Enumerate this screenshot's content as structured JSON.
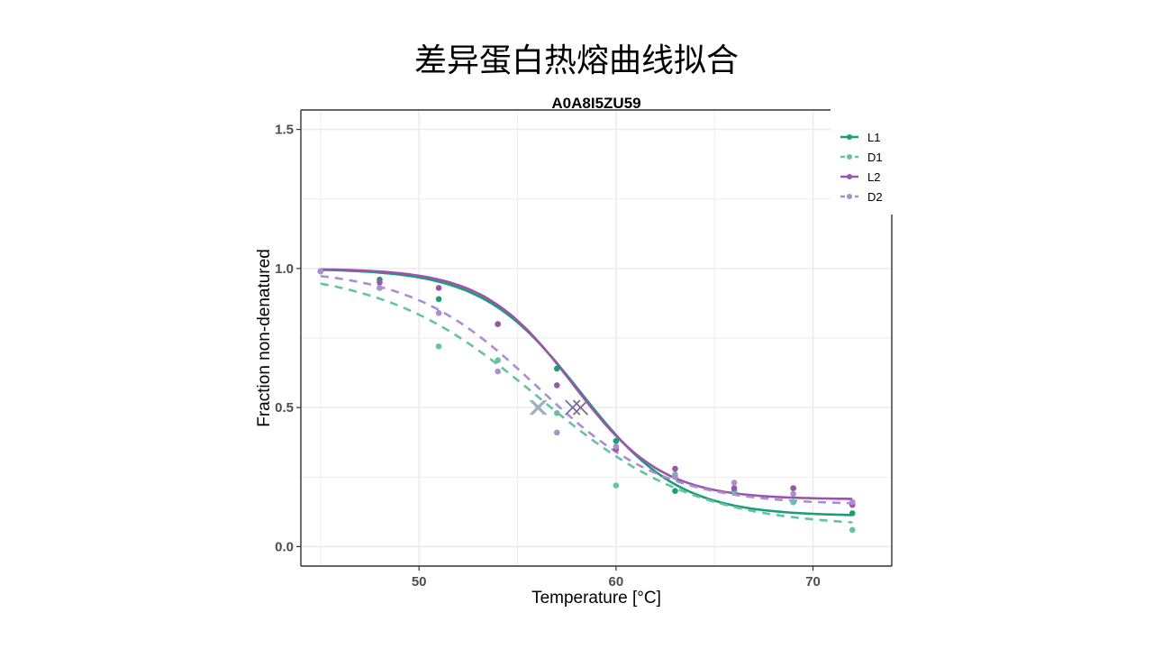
{
  "slide_title": "差异蛋白热熔曲线拟合",
  "colors": {
    "L1": "#1b9e77",
    "D1": "#66c2a5",
    "L2": "#9955aa",
    "D2": "#a88fd0",
    "grid": "#ebebeb",
    "axis": "#333333",
    "tm_marker_D": "#a0aec4",
    "tm_marker_L": "#7a6a9a"
  },
  "chart_data": {
    "type": "line",
    "title": "A0A8I5ZU59",
    "xlabel": "Temperature [°C]",
    "ylabel": "Fraction non-denatured",
    "xlim": [
      44,
      74
    ],
    "ylim": [
      -0.07,
      1.57
    ],
    "xticks": [
      50,
      60,
      70
    ],
    "yticks": [
      0.0,
      0.5,
      1.0,
      1.5
    ],
    "ytick_labels": [
      "0.0",
      "0.5",
      "1.0",
      "1.5"
    ],
    "grid": true,
    "legend_position": "top-right",
    "series": [
      {
        "name": "L1",
        "style": "solid",
        "points": [
          [
            45,
            0.99
          ],
          [
            48,
            0.96
          ],
          [
            51,
            0.89
          ],
          [
            54,
            0.8
          ],
          [
            57,
            0.64
          ],
          [
            60,
            0.38
          ],
          [
            63,
            0.2
          ],
          [
            66,
            0.2
          ],
          [
            69,
            0.16
          ],
          [
            72,
            0.12
          ]
        ],
        "fit": {
          "a": 1.0,
          "b": 0.11,
          "tm": 58.2,
          "k": 0.4
        },
        "tm": 58.2
      },
      {
        "name": "D1",
        "style": "dashed",
        "points": [
          [
            45,
            0.99
          ],
          [
            48,
            0.93
          ],
          [
            51,
            0.72
          ],
          [
            54,
            0.67
          ],
          [
            57,
            0.48
          ],
          [
            60,
            0.22
          ],
          [
            63,
            0.26
          ],
          [
            66,
            0.2
          ],
          [
            69,
            0.16
          ],
          [
            72,
            0.06
          ]
        ],
        "fit": {
          "a": 1.0,
          "b": 0.07,
          "tm": 56.1,
          "k": 0.25
        },
        "tm": 56.1
      },
      {
        "name": "L2",
        "style": "solid",
        "points": [
          [
            45,
            0.99
          ],
          [
            48,
            0.95
          ],
          [
            51,
            0.93
          ],
          [
            54,
            0.8
          ],
          [
            57,
            0.58
          ],
          [
            60,
            0.35
          ],
          [
            63,
            0.28
          ],
          [
            66,
            0.21
          ],
          [
            69,
            0.21
          ],
          [
            72,
            0.15
          ]
        ],
        "fit": {
          "a": 1.0,
          "b": 0.17,
          "tm": 57.8,
          "k": 0.44
        },
        "tm": 57.8
      },
      {
        "name": "D2",
        "style": "dashed",
        "points": [
          [
            45,
            0.99
          ],
          [
            48,
            0.93
          ],
          [
            51,
            0.84
          ],
          [
            54,
            0.63
          ],
          [
            57,
            0.41
          ],
          [
            60,
            0.36
          ],
          [
            63,
            0.25
          ],
          [
            66,
            0.23
          ],
          [
            69,
            0.19
          ],
          [
            72,
            0.16
          ]
        ],
        "fit": {
          "a": 1.0,
          "b": 0.15,
          "tm": 56.0,
          "k": 0.31
        },
        "tm": 56.0
      }
    ]
  }
}
